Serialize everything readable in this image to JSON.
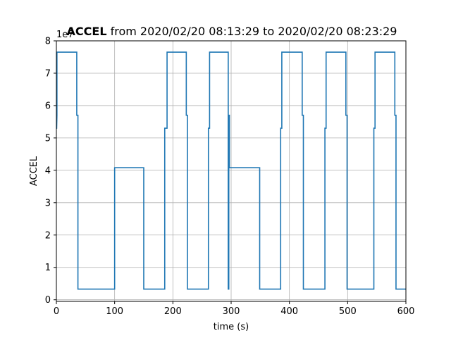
{
  "chart_data": {
    "type": "line",
    "title_bold": "ACCEL",
    "title_rest": " from 2020/02/20 08:13:29 to 2020/02/20 08:23:29",
    "xlabel": "time (s)",
    "ylabel": "ACCEL",
    "y_offset_label": "1e7",
    "xlim": [
      0,
      600
    ],
    "ylim": [
      -0.05,
      8.0
    ],
    "xticks": [
      0,
      100,
      200,
      300,
      400,
      500,
      600
    ],
    "yticks": [
      0,
      1,
      2,
      3,
      4,
      5,
      6,
      7,
      8
    ],
    "grid": true,
    "line_color": "#1f77b4",
    "series": [
      {
        "x": [
          0,
          0.5,
          1,
          1,
          3,
          3,
          35,
          35,
          37,
          37,
          100,
          100,
          150,
          150,
          186,
          186,
          188,
          188,
          190,
          190,
          223,
          223,
          225,
          225,
          227,
          227,
          261,
          261,
          263,
          263,
          295,
          295,
          296,
          296,
          297,
          297,
          299,
          299,
          349,
          349,
          385,
          385,
          387,
          387,
          389,
          389,
          422,
          422,
          424,
          424,
          426,
          426,
          461,
          461,
          463,
          463,
          497,
          497,
          499,
          499,
          501,
          501,
          545,
          545,
          547,
          547,
          549,
          549,
          581,
          581,
          583,
          583,
          600
        ],
        "y": [
          5.3,
          5.3,
          5.7,
          7.65,
          7.65,
          7.65,
          7.65,
          5.7,
          5.7,
          0.33,
          0.33,
          4.08,
          4.08,
          0.33,
          0.33,
          5.3,
          5.3,
          5.3,
          5.3,
          7.65,
          7.65,
          5.7,
          5.7,
          0.33,
          0.33,
          0.33,
          0.33,
          5.3,
          5.3,
          7.65,
          7.65,
          0.33,
          0.33,
          5.7,
          5.7,
          4.08,
          4.08,
          4.08,
          4.08,
          0.33,
          0.33,
          5.3,
          5.3,
          7.65,
          7.65,
          7.65,
          7.65,
          5.7,
          5.7,
          0.33,
          0.33,
          0.33,
          0.33,
          5.3,
          5.3,
          7.65,
          7.65,
          5.7,
          5.7,
          0.33,
          0.33,
          0.33,
          0.33,
          5.3,
          5.3,
          7.65,
          7.65,
          7.65,
          7.65,
          5.7,
          5.7,
          0.33,
          0.33
        ]
      }
    ]
  }
}
